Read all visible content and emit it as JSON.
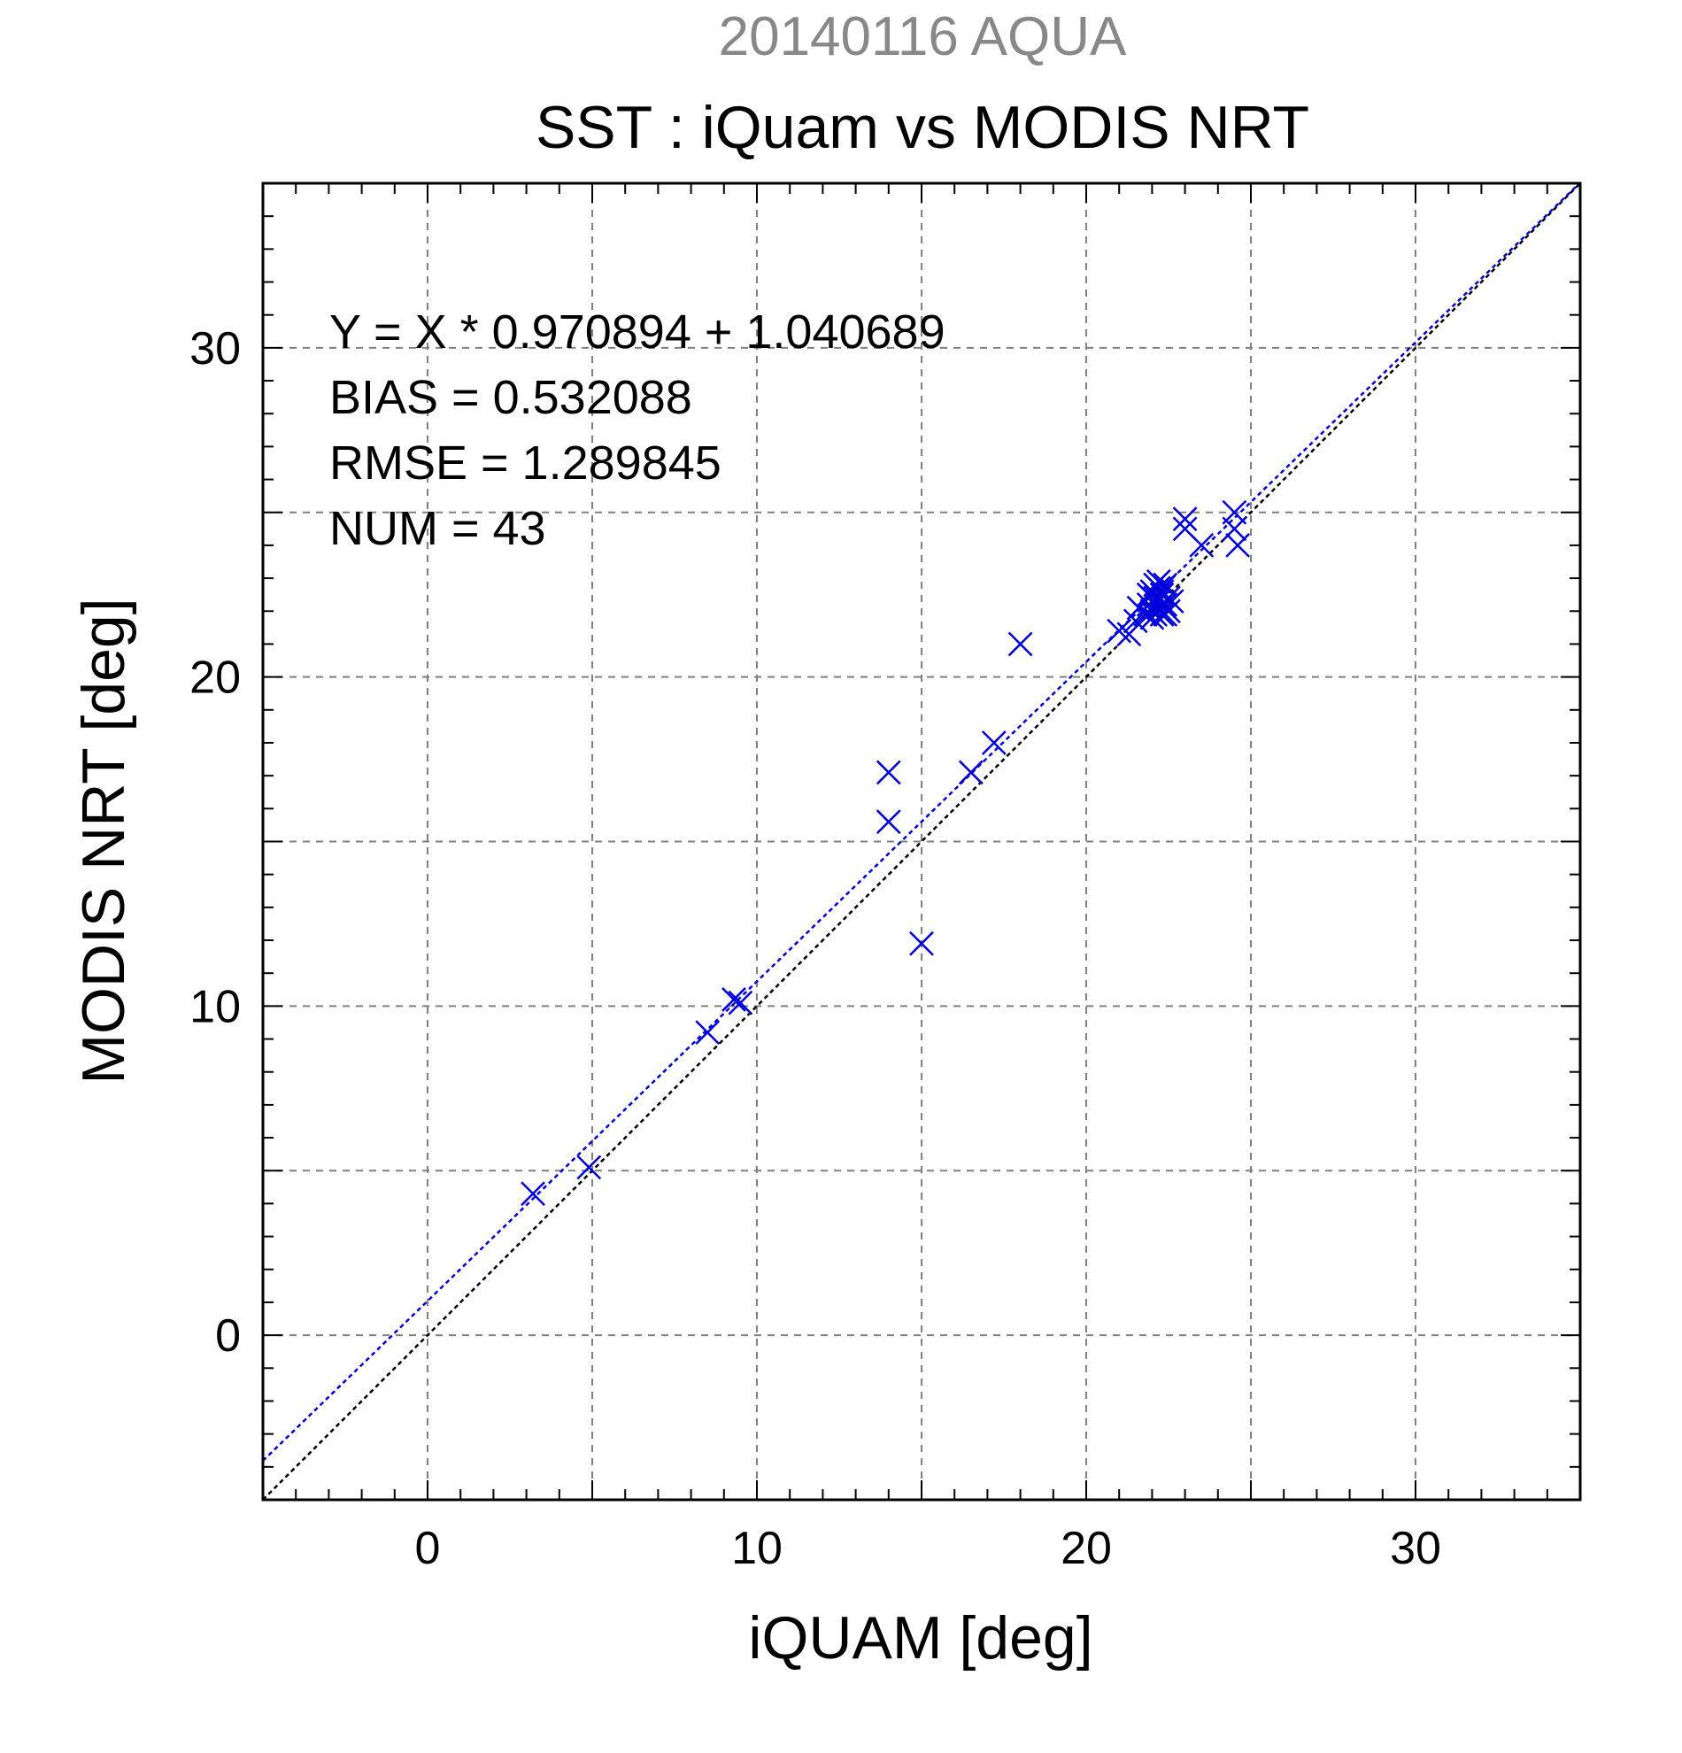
{
  "chart_data": {
    "type": "scatter",
    "date_title": "20140116 AQUA",
    "title": "SST : iQuam vs MODIS NRT",
    "xlabel": "iQUAM [deg]",
    "ylabel": "MODIS NRT [deg]",
    "xlim": [
      -5,
      35
    ],
    "ylim": [
      -5,
      35
    ],
    "xticks": [
      0,
      10,
      20,
      30
    ],
    "yticks": [
      0,
      10,
      20,
      30
    ],
    "grid": true,
    "stats": [
      "Y = X * 0.970894 + 1.040689",
      "BIAS = 0.532088",
      "RMSE = 1.289845",
      "NUM = 43"
    ],
    "fit": {
      "slope": 0.970894,
      "intercept": 1.040689
    },
    "colors": {
      "points": "#0000dd",
      "fit_line": "#0000dd",
      "identity_line": "#000000",
      "date_title": "#888888",
      "grid": "#808080"
    },
    "points": [
      [
        3.2,
        4.3
      ],
      [
        4.9,
        5.1
      ],
      [
        8.5,
        9.2
      ],
      [
        9.3,
        10.2
      ],
      [
        9.5,
        10.1
      ],
      [
        14.0,
        17.1
      ],
      [
        14.0,
        15.6
      ],
      [
        15.0,
        11.9
      ],
      [
        16.5,
        17.1
      ],
      [
        17.2,
        18.0
      ],
      [
        18.0,
        21.0
      ],
      [
        21.0,
        21.4
      ],
      [
        21.3,
        21.3
      ],
      [
        21.5,
        21.7
      ],
      [
        21.6,
        22.1
      ],
      [
        21.8,
        21.9
      ],
      [
        21.9,
        22.2
      ],
      [
        22.0,
        22.6
      ],
      [
        22.0,
        22.0
      ],
      [
        22.1,
        22.8
      ],
      [
        22.1,
        22.4
      ],
      [
        22.1,
        21.9
      ],
      [
        22.2,
        22.3
      ],
      [
        22.2,
        22.7
      ],
      [
        22.2,
        22.1
      ],
      [
        22.3,
        22.5
      ],
      [
        22.3,
        21.9
      ],
      [
        22.3,
        22.6
      ],
      [
        22.4,
        22.2
      ],
      [
        22.4,
        22.8
      ],
      [
        22.4,
        21.9
      ],
      [
        22.5,
        22.4
      ],
      [
        22.5,
        22.0
      ],
      [
        23.0,
        24.8
      ],
      [
        23.0,
        24.5
      ],
      [
        23.5,
        24.0
      ],
      [
        24.5,
        25.0
      ],
      [
        24.5,
        24.5
      ],
      [
        24.6,
        24.0
      ],
      [
        22.0,
        21.8
      ],
      [
        21.9,
        22.5
      ],
      [
        22.2,
        22.9
      ],
      [
        22.6,
        22.3
      ]
    ]
  }
}
